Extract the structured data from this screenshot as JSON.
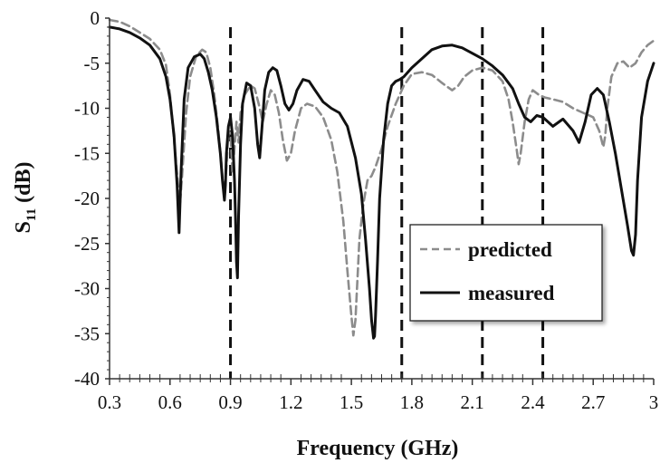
{
  "chart_data": {
    "type": "line",
    "title": "",
    "xlabel": "Frequency (GHz)",
    "ylabel": "S11 (dB)",
    "ylabel_main": "S",
    "ylabel_sub": "11",
    "ylabel_unit": " (dB)",
    "xlim": [
      0.3,
      3.0
    ],
    "ylim": [
      -40,
      0
    ],
    "x_ticks": [
      "0.3",
      "0.6",
      "0.9",
      "1.2",
      "1.5",
      "1.8",
      "2.1",
      "2.4",
      "2.7",
      "3"
    ],
    "y_ticks": [
      "0",
      "-5",
      "-10",
      "-15",
      "-20",
      "-25",
      "-30",
      "-35",
      "-40"
    ],
    "grid": false,
    "legend_position": "lower-right",
    "markers_vertical": [
      0.9,
      1.75,
      2.15,
      2.45
    ],
    "series": [
      {
        "name": "predicted",
        "style": "dashed",
        "color": "#8c8c8c",
        "x": [
          0.3,
          0.35,
          0.4,
          0.45,
          0.5,
          0.55,
          0.58,
          0.6,
          0.62,
          0.64,
          0.65,
          0.66,
          0.68,
          0.7,
          0.73,
          0.76,
          0.78,
          0.8,
          0.82,
          0.84,
          0.86,
          0.87,
          0.88,
          0.89,
          0.9,
          0.91,
          0.92,
          0.93,
          0.94,
          0.95,
          0.97,
          1.0,
          1.02,
          1.04,
          1.06,
          1.08,
          1.1,
          1.12,
          1.14,
          1.16,
          1.18,
          1.2,
          1.22,
          1.25,
          1.28,
          1.32,
          1.36,
          1.4,
          1.43,
          1.46,
          1.48,
          1.5,
          1.51,
          1.52,
          1.53,
          1.54,
          1.56,
          1.58,
          1.6,
          1.62,
          1.65,
          1.68,
          1.72,
          1.76,
          1.8,
          1.85,
          1.9,
          1.95,
          2.0,
          2.03,
          2.06,
          2.1,
          2.15,
          2.2,
          2.25,
          2.28,
          2.3,
          2.32,
          2.33,
          2.34,
          2.36,
          2.38,
          2.4,
          2.43,
          2.46,
          2.5,
          2.55,
          2.6,
          2.65,
          2.7,
          2.73,
          2.75,
          2.76,
          2.77,
          2.79,
          2.82,
          2.85,
          2.88,
          2.91,
          2.94,
          2.97,
          3.0
        ],
        "y": [
          -0.2,
          -0.4,
          -0.9,
          -1.6,
          -2.3,
          -3.5,
          -5.2,
          -8.5,
          -13.5,
          -18.5,
          -20.5,
          -17.5,
          -10.5,
          -6.5,
          -4.2,
          -3.5,
          -3.8,
          -5.5,
          -8.5,
          -12.5,
          -17.5,
          -19.8,
          -16.5,
          -12.5,
          -12.8,
          -17.0,
          -14.5,
          -11.5,
          -13.8,
          -10.5,
          -8.5,
          -7.5,
          -7.8,
          -9.5,
          -11.5,
          -9.5,
          -8.0,
          -8.5,
          -10.5,
          -13.5,
          -15.8,
          -15.0,
          -12.5,
          -10.0,
          -9.5,
          -9.8,
          -11.0,
          -13.5,
          -17.0,
          -22.5,
          -28.0,
          -33.0,
          -35.2,
          -33.5,
          -29.0,
          -24.5,
          -20.5,
          -18.0,
          -17.5,
          -16.5,
          -14.5,
          -12.0,
          -9.5,
          -7.5,
          -6.2,
          -6.0,
          -6.3,
          -7.2,
          -8.0,
          -7.5,
          -6.5,
          -5.8,
          -5.5,
          -5.8,
          -7.0,
          -9.0,
          -11.5,
          -14.5,
          -16.2,
          -15.0,
          -11.5,
          -9.0,
          -8.0,
          -8.5,
          -8.8,
          -9.0,
          -9.3,
          -10.0,
          -10.5,
          -11.0,
          -12.5,
          -14.3,
          -13.0,
          -10.0,
          -6.5,
          -5.0,
          -4.8,
          -5.5,
          -5.0,
          -3.8,
          -3.0,
          -2.5
        ]
      },
      {
        "name": "measured",
        "style": "solid",
        "color": "#111111",
        "x": [
          0.3,
          0.35,
          0.4,
          0.45,
          0.5,
          0.55,
          0.58,
          0.6,
          0.62,
          0.635,
          0.645,
          0.655,
          0.67,
          0.69,
          0.72,
          0.75,
          0.77,
          0.79,
          0.81,
          0.83,
          0.85,
          0.86,
          0.87,
          0.875,
          0.88,
          0.89,
          0.9,
          0.91,
          0.92,
          0.925,
          0.93,
          0.935,
          0.94,
          0.95,
          0.96,
          0.98,
          1.0,
          1.02,
          1.035,
          1.045,
          1.055,
          1.07,
          1.09,
          1.11,
          1.13,
          1.15,
          1.17,
          1.19,
          1.21,
          1.23,
          1.26,
          1.29,
          1.32,
          1.36,
          1.4,
          1.44,
          1.48,
          1.52,
          1.55,
          1.57,
          1.59,
          1.6,
          1.61,
          1.615,
          1.62,
          1.63,
          1.64,
          1.66,
          1.68,
          1.7,
          1.72,
          1.74,
          1.76,
          1.8,
          1.85,
          1.9,
          1.95,
          2.0,
          2.05,
          2.1,
          2.15,
          2.2,
          2.25,
          2.3,
          2.33,
          2.36,
          2.39,
          2.42,
          2.45,
          2.5,
          2.55,
          2.6,
          2.63,
          2.66,
          2.69,
          2.72,
          2.75,
          2.78,
          2.81,
          2.84,
          2.87,
          2.89,
          2.9,
          2.91,
          2.92,
          2.94,
          2.97,
          3.0
        ],
        "y": [
          -1.0,
          -1.2,
          -1.6,
          -2.2,
          -3.0,
          -4.5,
          -6.5,
          -9.0,
          -13.0,
          -18.5,
          -23.8,
          -17.0,
          -9.0,
          -5.5,
          -4.3,
          -4.0,
          -4.5,
          -6.0,
          -8.0,
          -11.0,
          -15.0,
          -18.0,
          -20.2,
          -18.5,
          -15.0,
          -12.0,
          -11.0,
          -13.0,
          -18.0,
          -22.0,
          -27.0,
          -28.8,
          -22.0,
          -14.0,
          -9.5,
          -7.2,
          -7.5,
          -10.0,
          -14.0,
          -15.5,
          -12.5,
          -8.0,
          -6.0,
          -5.5,
          -5.8,
          -7.5,
          -9.5,
          -10.2,
          -9.5,
          -8.0,
          -6.8,
          -7.0,
          -8.0,
          -9.3,
          -10.0,
          -10.5,
          -12.0,
          -15.5,
          -19.5,
          -24.5,
          -30.0,
          -33.5,
          -35.5,
          -35.3,
          -33.0,
          -27.0,
          -20.0,
          -13.5,
          -9.5,
          -7.5,
          -7.0,
          -6.8,
          -6.5,
          -5.5,
          -4.5,
          -3.5,
          -3.1,
          -3.0,
          -3.3,
          -3.9,
          -4.5,
          -5.3,
          -6.3,
          -7.8,
          -9.5,
          -11.0,
          -11.5,
          -10.8,
          -11.0,
          -12.0,
          -11.2,
          -12.5,
          -13.8,
          -11.5,
          -8.5,
          -7.8,
          -8.5,
          -11.5,
          -15.0,
          -19.0,
          -23.0,
          -25.8,
          -26.3,
          -24.0,
          -18.0,
          -11.0,
          -7.0,
          -5.0
        ]
      }
    ]
  }
}
